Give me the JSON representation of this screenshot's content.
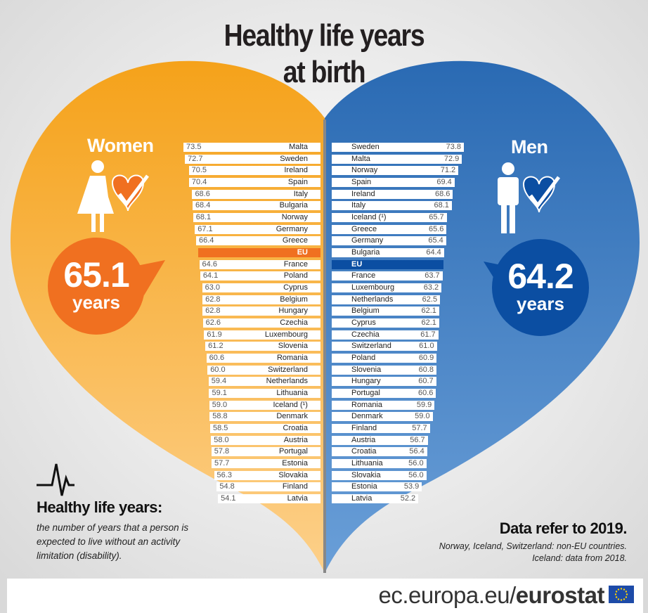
{
  "title_line1": "Healthy life years",
  "title_line2": "at birth",
  "women": {
    "label": "Women",
    "eu_value": "65.1",
    "eu_unit": "years",
    "color": "#f7a21b"
  },
  "men": {
    "label": "Men",
    "eu_value": "64.2",
    "eu_unit": "years",
    "color": "#2b6db6"
  },
  "definition": {
    "title": "Healthy life years:",
    "text": "the number of years that a person is expected to live without an activity limitation (disability)."
  },
  "notes": {
    "title": "Data refer to 2019.",
    "line1": "Norway, Iceland, Switzerland: non-EU countries.",
    "line2": "Iceland: data from 2018."
  },
  "footer": {
    "url_prefix": "ec.europa.eu/",
    "url_brand": "eurostat"
  },
  "chart_data": {
    "type": "bar",
    "title": "Healthy life years at birth",
    "unit": "years",
    "series": [
      {
        "name": "Women",
        "categories": [
          "Malta",
          "Sweden",
          "Ireland",
          "Spain",
          "Italy",
          "Bulgaria",
          "Norway",
          "Germany",
          "Greece",
          "EU",
          "France",
          "Poland",
          "Cyprus",
          "Belgium",
          "Hungary",
          "Czechia",
          "Luxembourg",
          "Slovenia",
          "Romania",
          "Switzerland",
          "Netherlands",
          "Lithuania",
          "Iceland (¹)",
          "Denmark",
          "Croatia",
          "Austria",
          "Portugal",
          "Estonia",
          "Slovakia",
          "Finland",
          "Latvia"
        ],
        "values": [
          73.5,
          72.7,
          70.5,
          70.4,
          68.6,
          68.4,
          68.1,
          67.1,
          66.4,
          65.1,
          64.6,
          64.1,
          63.0,
          62.8,
          62.8,
          62.6,
          61.9,
          61.2,
          60.6,
          60.0,
          59.4,
          59.1,
          59.0,
          58.8,
          58.5,
          58.0,
          57.8,
          57.7,
          56.3,
          54.8,
          54.1
        ],
        "labels": [
          "73.5",
          "72.7",
          "70.5",
          "70.4",
          "68.6",
          "68.4",
          "68.1",
          "67.1",
          "66.4",
          "",
          "64.6",
          "64.1",
          "63.0",
          "62.8",
          "62.8",
          "62.6",
          "61.9",
          "61.2",
          "60.6",
          "60.0",
          "59.4",
          "59.1",
          "59.0",
          "58.8",
          "58.5",
          "58.0",
          "57.8",
          "57.7",
          "56.3",
          "54.8",
          "54.1"
        ]
      },
      {
        "name": "Men",
        "categories": [
          "Sweden",
          "Malta",
          "Norway",
          "Spain",
          "Ireland",
          "Italy",
          "Iceland (¹)",
          "Greece",
          "Germany",
          "Bulgaria",
          "EU",
          "France",
          "Luxembourg",
          "Netherlands",
          "Belgium",
          "Cyprus",
          "Czechia",
          "Switzerland",
          "Poland",
          "Slovenia",
          "Hungary",
          "Portugal",
          "Romania",
          "Denmark",
          "Finland",
          "Austria",
          "Croatia",
          "Lithuania",
          "Slovakia",
          "Estonia",
          "Latvia"
        ],
        "values": [
          73.8,
          72.9,
          71.2,
          69.4,
          68.6,
          68.1,
          65.7,
          65.6,
          65.4,
          64.4,
          64.2,
          63.7,
          63.2,
          62.5,
          62.1,
          62.1,
          61.7,
          61.0,
          60.9,
          60.8,
          60.7,
          60.6,
          59.9,
          59.0,
          57.7,
          56.7,
          56.4,
          56.0,
          56.0,
          53.9,
          52.2
        ],
        "labels": [
          "73.8",
          "72.9",
          "71.2",
          "69.4",
          "68.6",
          "68.1",
          "65.7",
          "65.6",
          "65.4",
          "64.4",
          "",
          "63.7",
          "63.2",
          "62.5",
          "62.1",
          "62.1",
          "61.7",
          "61.0",
          "60.9",
          "60.8",
          "60.7",
          "60.6",
          "59.9",
          "59.0",
          "57.7",
          "56.7",
          "56.4",
          "56.0",
          "56.0",
          "53.9",
          "52.2"
        ]
      }
    ],
    "eu_bar_colors": {
      "Women": "#f07020",
      "Men": "#0b4ea2"
    }
  }
}
